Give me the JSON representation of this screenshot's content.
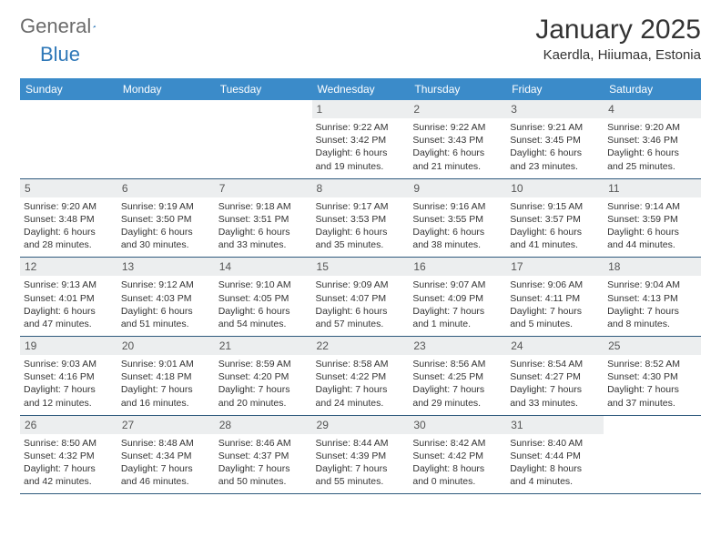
{
  "brand": {
    "text1": "General",
    "text2": "Blue"
  },
  "title": "January 2025",
  "location": "Kaerdla, Hiiumaa, Estonia",
  "colors": {
    "header_bg": "#3b8bc9",
    "header_text": "#ffffff",
    "daynum_bg": "#eceeef",
    "border": "#2f5a7d",
    "brand_gray": "#6b6b6b",
    "brand_blue": "#2f78b8"
  },
  "weekdays": [
    "Sunday",
    "Monday",
    "Tuesday",
    "Wednesday",
    "Thursday",
    "Friday",
    "Saturday"
  ],
  "weeks": [
    [
      null,
      null,
      null,
      {
        "n": "1",
        "sunrise": "Sunrise: 9:22 AM",
        "sunset": "Sunset: 3:42 PM",
        "day1": "Daylight: 6 hours",
        "day2": "and 19 minutes."
      },
      {
        "n": "2",
        "sunrise": "Sunrise: 9:22 AM",
        "sunset": "Sunset: 3:43 PM",
        "day1": "Daylight: 6 hours",
        "day2": "and 21 minutes."
      },
      {
        "n": "3",
        "sunrise": "Sunrise: 9:21 AM",
        "sunset": "Sunset: 3:45 PM",
        "day1": "Daylight: 6 hours",
        "day2": "and 23 minutes."
      },
      {
        "n": "4",
        "sunrise": "Sunrise: 9:20 AM",
        "sunset": "Sunset: 3:46 PM",
        "day1": "Daylight: 6 hours",
        "day2": "and 25 minutes."
      }
    ],
    [
      {
        "n": "5",
        "sunrise": "Sunrise: 9:20 AM",
        "sunset": "Sunset: 3:48 PM",
        "day1": "Daylight: 6 hours",
        "day2": "and 28 minutes."
      },
      {
        "n": "6",
        "sunrise": "Sunrise: 9:19 AM",
        "sunset": "Sunset: 3:50 PM",
        "day1": "Daylight: 6 hours",
        "day2": "and 30 minutes."
      },
      {
        "n": "7",
        "sunrise": "Sunrise: 9:18 AM",
        "sunset": "Sunset: 3:51 PM",
        "day1": "Daylight: 6 hours",
        "day2": "and 33 minutes."
      },
      {
        "n": "8",
        "sunrise": "Sunrise: 9:17 AM",
        "sunset": "Sunset: 3:53 PM",
        "day1": "Daylight: 6 hours",
        "day2": "and 35 minutes."
      },
      {
        "n": "9",
        "sunrise": "Sunrise: 9:16 AM",
        "sunset": "Sunset: 3:55 PM",
        "day1": "Daylight: 6 hours",
        "day2": "and 38 minutes."
      },
      {
        "n": "10",
        "sunrise": "Sunrise: 9:15 AM",
        "sunset": "Sunset: 3:57 PM",
        "day1": "Daylight: 6 hours",
        "day2": "and 41 minutes."
      },
      {
        "n": "11",
        "sunrise": "Sunrise: 9:14 AM",
        "sunset": "Sunset: 3:59 PM",
        "day1": "Daylight: 6 hours",
        "day2": "and 44 minutes."
      }
    ],
    [
      {
        "n": "12",
        "sunrise": "Sunrise: 9:13 AM",
        "sunset": "Sunset: 4:01 PM",
        "day1": "Daylight: 6 hours",
        "day2": "and 47 minutes."
      },
      {
        "n": "13",
        "sunrise": "Sunrise: 9:12 AM",
        "sunset": "Sunset: 4:03 PM",
        "day1": "Daylight: 6 hours",
        "day2": "and 51 minutes."
      },
      {
        "n": "14",
        "sunrise": "Sunrise: 9:10 AM",
        "sunset": "Sunset: 4:05 PM",
        "day1": "Daylight: 6 hours",
        "day2": "and 54 minutes."
      },
      {
        "n": "15",
        "sunrise": "Sunrise: 9:09 AM",
        "sunset": "Sunset: 4:07 PM",
        "day1": "Daylight: 6 hours",
        "day2": "and 57 minutes."
      },
      {
        "n": "16",
        "sunrise": "Sunrise: 9:07 AM",
        "sunset": "Sunset: 4:09 PM",
        "day1": "Daylight: 7 hours",
        "day2": "and 1 minute."
      },
      {
        "n": "17",
        "sunrise": "Sunrise: 9:06 AM",
        "sunset": "Sunset: 4:11 PM",
        "day1": "Daylight: 7 hours",
        "day2": "and 5 minutes."
      },
      {
        "n": "18",
        "sunrise": "Sunrise: 9:04 AM",
        "sunset": "Sunset: 4:13 PM",
        "day1": "Daylight: 7 hours",
        "day2": "and 8 minutes."
      }
    ],
    [
      {
        "n": "19",
        "sunrise": "Sunrise: 9:03 AM",
        "sunset": "Sunset: 4:16 PM",
        "day1": "Daylight: 7 hours",
        "day2": "and 12 minutes."
      },
      {
        "n": "20",
        "sunrise": "Sunrise: 9:01 AM",
        "sunset": "Sunset: 4:18 PM",
        "day1": "Daylight: 7 hours",
        "day2": "and 16 minutes."
      },
      {
        "n": "21",
        "sunrise": "Sunrise: 8:59 AM",
        "sunset": "Sunset: 4:20 PM",
        "day1": "Daylight: 7 hours",
        "day2": "and 20 minutes."
      },
      {
        "n": "22",
        "sunrise": "Sunrise: 8:58 AM",
        "sunset": "Sunset: 4:22 PM",
        "day1": "Daylight: 7 hours",
        "day2": "and 24 minutes."
      },
      {
        "n": "23",
        "sunrise": "Sunrise: 8:56 AM",
        "sunset": "Sunset: 4:25 PM",
        "day1": "Daylight: 7 hours",
        "day2": "and 29 minutes."
      },
      {
        "n": "24",
        "sunrise": "Sunrise: 8:54 AM",
        "sunset": "Sunset: 4:27 PM",
        "day1": "Daylight: 7 hours",
        "day2": "and 33 minutes."
      },
      {
        "n": "25",
        "sunrise": "Sunrise: 8:52 AM",
        "sunset": "Sunset: 4:30 PM",
        "day1": "Daylight: 7 hours",
        "day2": "and 37 minutes."
      }
    ],
    [
      {
        "n": "26",
        "sunrise": "Sunrise: 8:50 AM",
        "sunset": "Sunset: 4:32 PM",
        "day1": "Daylight: 7 hours",
        "day2": "and 42 minutes."
      },
      {
        "n": "27",
        "sunrise": "Sunrise: 8:48 AM",
        "sunset": "Sunset: 4:34 PM",
        "day1": "Daylight: 7 hours",
        "day2": "and 46 minutes."
      },
      {
        "n": "28",
        "sunrise": "Sunrise: 8:46 AM",
        "sunset": "Sunset: 4:37 PM",
        "day1": "Daylight: 7 hours",
        "day2": "and 50 minutes."
      },
      {
        "n": "29",
        "sunrise": "Sunrise: 8:44 AM",
        "sunset": "Sunset: 4:39 PM",
        "day1": "Daylight: 7 hours",
        "day2": "and 55 minutes."
      },
      {
        "n": "30",
        "sunrise": "Sunrise: 8:42 AM",
        "sunset": "Sunset: 4:42 PM",
        "day1": "Daylight: 8 hours",
        "day2": "and 0 minutes."
      },
      {
        "n": "31",
        "sunrise": "Sunrise: 8:40 AM",
        "sunset": "Sunset: 4:44 PM",
        "day1": "Daylight: 8 hours",
        "day2": "and 4 minutes."
      },
      null
    ]
  ]
}
